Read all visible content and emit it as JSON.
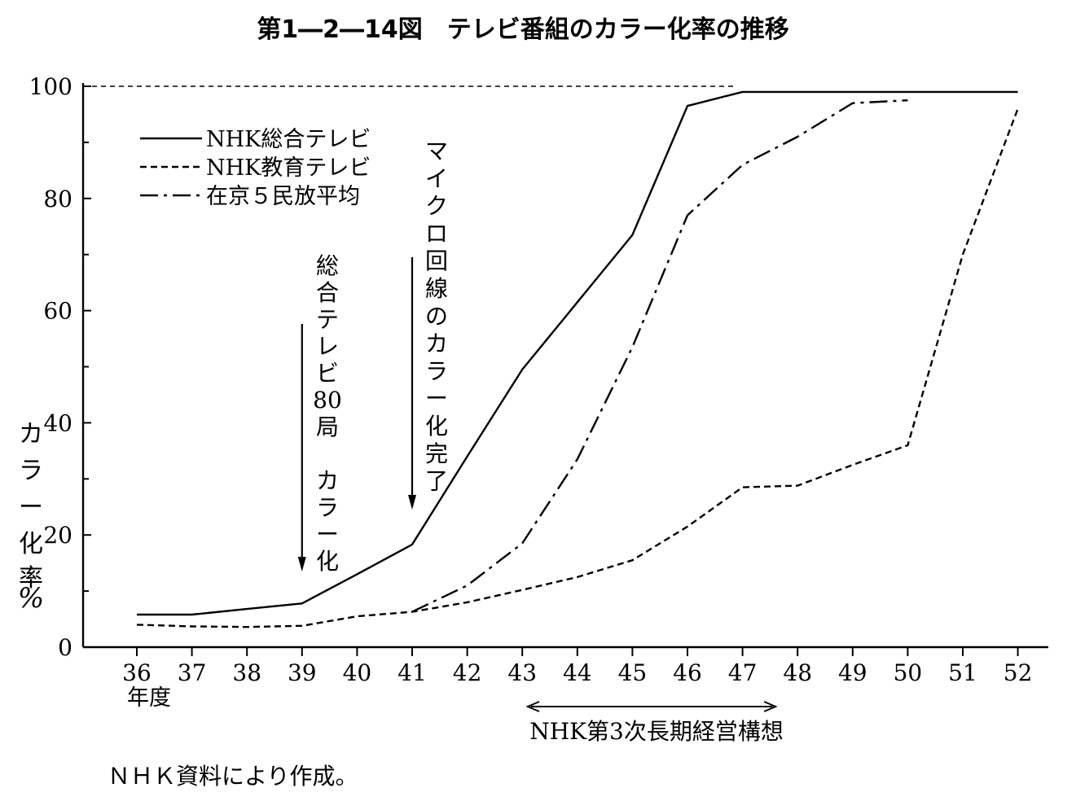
{
  "chart_data": {
    "type": "line",
    "title": "第1―2―14図　テレビ番組のカラー化率の推移",
    "ylabel_chars": [
      "カ",
      "ラ",
      "ー",
      "化",
      "率",
      "%"
    ],
    "xlabel": "年度",
    "x": [
      "36",
      "37",
      "38",
      "39",
      "40",
      "41",
      "42",
      "43",
      "44",
      "45",
      "46",
      "47",
      "48",
      "49",
      "50",
      "51",
      "52"
    ],
    "yticks": [
      "0",
      "20",
      "40",
      "60",
      "80",
      "100"
    ],
    "ylim": [
      0,
      100
    ],
    "legend_position": "top-left",
    "series": [
      {
        "name": "NHK総合テレビ",
        "style": "solid",
        "points": [
          [
            36,
            5.8
          ],
          [
            37,
            5.8
          ],
          [
            38,
            6.8
          ],
          [
            39,
            7.8
          ],
          [
            40,
            13.0
          ],
          [
            41,
            18.3
          ],
          [
            42,
            34.0
          ],
          [
            43,
            49.5
          ],
          [
            44,
            61.5
          ],
          [
            45,
            73.5
          ],
          [
            46,
            96.5
          ],
          [
            47,
            99.0
          ],
          [
            48,
            99.0
          ],
          [
            49,
            99.0
          ],
          [
            50,
            99.0
          ],
          [
            51,
            99.0
          ],
          [
            52,
            99.0
          ]
        ]
      },
      {
        "name": "NHK教育テレビ",
        "style": "dashed",
        "points": [
          [
            36,
            4.0
          ],
          [
            37,
            3.7
          ],
          [
            38,
            3.6
          ],
          [
            39,
            3.8
          ],
          [
            40,
            5.5
          ],
          [
            41,
            6.3
          ],
          [
            42,
            8.0
          ],
          [
            43,
            10.2
          ],
          [
            44,
            12.5
          ],
          [
            45,
            15.5
          ],
          [
            46,
            21.5
          ],
          [
            47,
            28.5
          ],
          [
            48,
            28.8
          ],
          [
            49,
            32.5
          ],
          [
            50,
            36.0
          ],
          [
            51,
            70.0
          ],
          [
            52,
            96.0
          ]
        ]
      },
      {
        "name": "在京５民放平均",
        "style": "dashdot",
        "points": [
          [
            41,
            6.3
          ],
          [
            42,
            11.0
          ],
          [
            43,
            18.5
          ],
          [
            44,
            33.5
          ],
          [
            45,
            53.5
          ],
          [
            46,
            77.0
          ],
          [
            47,
            86.0
          ],
          [
            48,
            91.0
          ],
          [
            49,
            97.0
          ],
          [
            50,
            97.5
          ]
        ]
      }
    ],
    "reference_line": {
      "y": 100,
      "from_x": 36,
      "to_x": 47,
      "style": "dashed"
    },
    "annotations": [
      {
        "text_chars": [
          "総",
          "合",
          "テ",
          "レ",
          "ビ",
          "80",
          "局",
          "",
          "カ",
          "ラ",
          "ー",
          "化"
        ],
        "arrow_x": 39
      },
      {
        "text_chars": [
          "マ",
          "イ",
          "ク",
          "ロ",
          "回",
          "線",
          "の",
          "カ",
          "ラ",
          "ー",
          "化",
          "完",
          "了"
        ],
        "arrow_x": 41
      }
    ],
    "period": {
      "label": "NHK第3次長期経営構想",
      "from_x": 43.1,
      "to_x": 47.6
    },
    "source": "ＮＨＫ資料により作成。"
  }
}
